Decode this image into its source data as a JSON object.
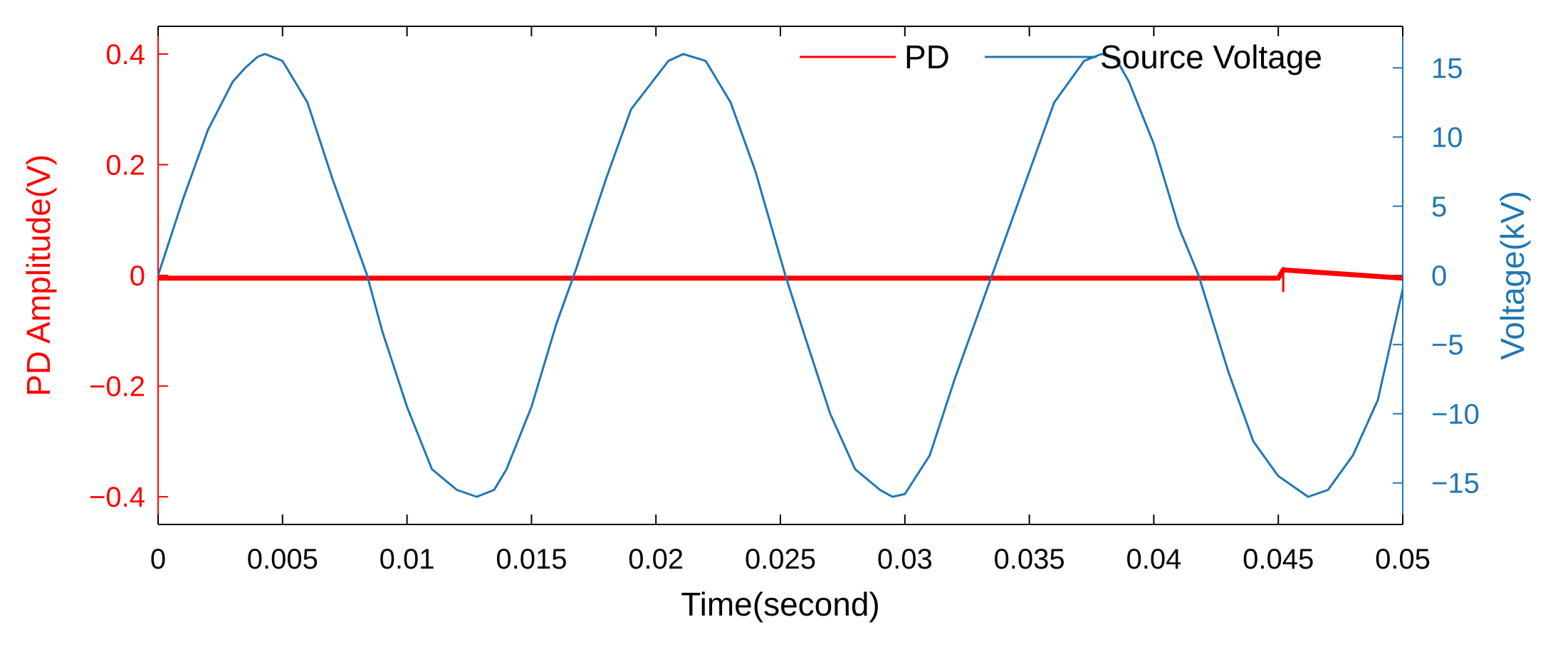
{
  "chart_data": {
    "type": "line",
    "title": "",
    "xlabel": "Time(second)",
    "ylabel_left": "PD Amplitude(V)",
    "ylabel_right": "Voltage(kV)",
    "xlim": [
      0,
      0.05
    ],
    "ylim_left": [
      -0.45,
      0.45
    ],
    "ylim_right": [
      -18,
      18
    ],
    "x_ticks": [
      0,
      0.005,
      0.01,
      0.015,
      0.02,
      0.025,
      0.03,
      0.035,
      0.04,
      0.045,
      0.05
    ],
    "x_tick_labels": [
      "0",
      "0.005",
      "0.01",
      "0.015",
      "0.02",
      "0.025",
      "0.03",
      "0.035",
      "0.04",
      "0.045",
      "0.05"
    ],
    "y_left_ticks": [
      0.4,
      0.2,
      0,
      -0.2,
      -0.4
    ],
    "y_left_tick_labels": [
      "0.4",
      "0.2",
      "0",
      "−0.2",
      "−0.4"
    ],
    "y_right_ticks": [
      15,
      10,
      5,
      0,
      -5,
      -10,
      -15
    ],
    "y_right_tick_labels": [
      "15",
      "10",
      "5",
      "0",
      "−5",
      "−10",
      "−15"
    ],
    "grid": false,
    "legend_position": "top-right",
    "colors": {
      "pd": "#ff0000",
      "voltage": "#1f77b4",
      "axis": "#000000"
    },
    "series": [
      {
        "name": "PD",
        "axis": "left",
        "x": [
          0,
          0.005,
          0.01,
          0.015,
          0.02,
          0.025,
          0.03,
          0.035,
          0.04,
          0.045,
          0.0452,
          0.05
        ],
        "y": [
          -0.005,
          -0.005,
          -0.005,
          -0.005,
          -0.005,
          -0.005,
          -0.005,
          -0.005,
          -0.005,
          -0.005,
          0.01,
          -0.005
        ],
        "spike": {
          "x": 0.0452,
          "ymin": -0.03,
          "ymax": 0.015
        }
      },
      {
        "name": "Source Voltage",
        "axis": "right",
        "x": [
          0,
          0.001,
          0.002,
          0.003,
          0.0035,
          0.004,
          0.0043,
          0.005,
          0.006,
          0.007,
          0.0084,
          0.009,
          0.01,
          0.011,
          0.012,
          0.0128,
          0.0135,
          0.014,
          0.015,
          0.016,
          0.0168,
          0.018,
          0.019,
          0.0205,
          0.0211,
          0.022,
          0.023,
          0.024,
          0.0252,
          0.026,
          0.027,
          0.028,
          0.029,
          0.0295,
          0.03,
          0.031,
          0.032,
          0.0335,
          0.035,
          0.036,
          0.0372,
          0.0379,
          0.0385,
          0.039,
          0.04,
          0.041,
          0.0418,
          0.043,
          0.044,
          0.045,
          0.0462,
          0.047,
          0.048,
          0.049,
          0.05
        ],
        "y": [
          0,
          5.5,
          10.5,
          14,
          15,
          15.8,
          16,
          15.5,
          12.5,
          7,
          0,
          -4,
          -9.5,
          -14,
          -15.5,
          -16,
          -15.5,
          -14,
          -9.5,
          -3.5,
          0.5,
          7,
          12,
          15.5,
          16,
          15.5,
          12.5,
          7.5,
          0,
          -4.5,
          -10,
          -14,
          -15.5,
          -16,
          -15.8,
          -13,
          -7.5,
          0,
          7.5,
          12.5,
          15.5,
          16,
          15.6,
          14,
          9.5,
          3.5,
          0,
          -7,
          -12,
          -14.5,
          -16,
          -15.5,
          -13,
          -9,
          -1
        ]
      }
    ]
  }
}
